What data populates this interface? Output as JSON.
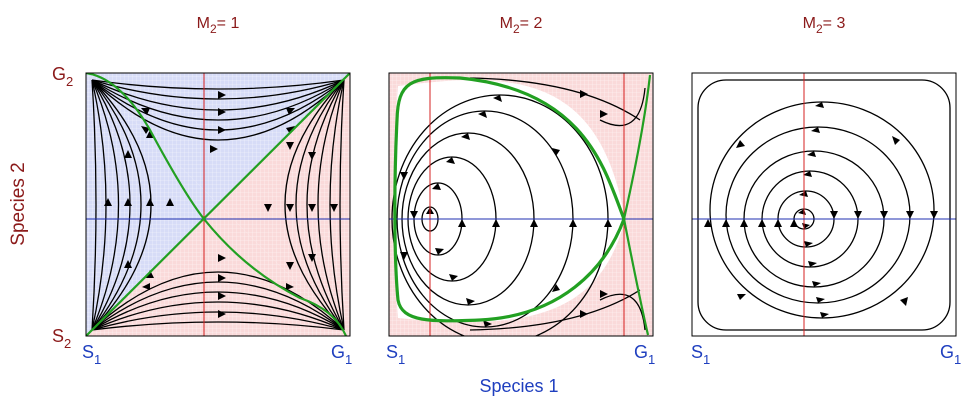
{
  "figure": {
    "y_axis_label": "Species 2",
    "x_axis_label": "Species 1",
    "corner_labels": {
      "g2": {
        "base": "G",
        "sub": "2"
      },
      "s2": {
        "base": "S",
        "sub": "2"
      },
      "s1": {
        "base": "S",
        "sub": "1"
      },
      "g1": {
        "base": "G",
        "sub": "1"
      }
    },
    "colors": {
      "title": "#8b1a1a",
      "y_label": "#8b1a1a",
      "x_label": "#1f3fbf",
      "separatrix": "#22a022",
      "vertical_nullcline": "#d62020",
      "horizontal_nullcline": "#1f2fb0",
      "region_blue": "#d7dcf7",
      "region_red": "#fadada",
      "stream": "#000000"
    }
  },
  "panels": [
    {
      "id": "m2-1",
      "title": {
        "base": "M",
        "sub": "2",
        "rest": "= 1"
      },
      "kind": "saddle"
    },
    {
      "id": "m2-2",
      "title": {
        "base": "M",
        "sub": "2",
        "rest": "= 2"
      },
      "kind": "cycle-saddle"
    },
    {
      "id": "m2-3",
      "title": {
        "base": "M",
        "sub": "2",
        "rest": "= 3"
      },
      "kind": "center"
    }
  ]
}
